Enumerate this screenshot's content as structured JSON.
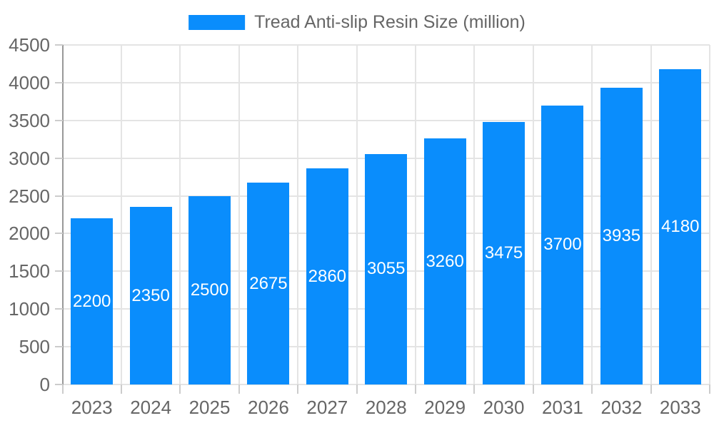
{
  "legend": {
    "swatch_icon": "legend-color-swatch"
  },
  "chart_data": {
    "type": "bar",
    "title": "Tread Anti-slip Resin Size (million)",
    "xlabel": "",
    "ylabel": "",
    "categories": [
      "2023",
      "2024",
      "2025",
      "2026",
      "2027",
      "2028",
      "2029",
      "2030",
      "2031",
      "2032",
      "2033"
    ],
    "values": [
      2200,
      2350,
      2500,
      2675,
      2860,
      3055,
      3260,
      3475,
      3700,
      3935,
      4180
    ],
    "ylim": [
      0,
      4500
    ],
    "ytick_step": 500,
    "ytick_labels": [
      "0",
      "500",
      "1000",
      "1500",
      "2000",
      "2500",
      "3000",
      "3500",
      "4000",
      "4500"
    ],
    "grid": true,
    "legend_position": "top",
    "value_labels": "inside-center-white"
  },
  "colors": {
    "bar": "#0a8dfc",
    "value_label_text": "#ffffff",
    "axis_text": "#666666",
    "legend_text": "#666666",
    "gridline": "#e4e4e4",
    "tick": "#cccccc",
    "y_axis_line": "#999999",
    "background": "#ffffff"
  }
}
